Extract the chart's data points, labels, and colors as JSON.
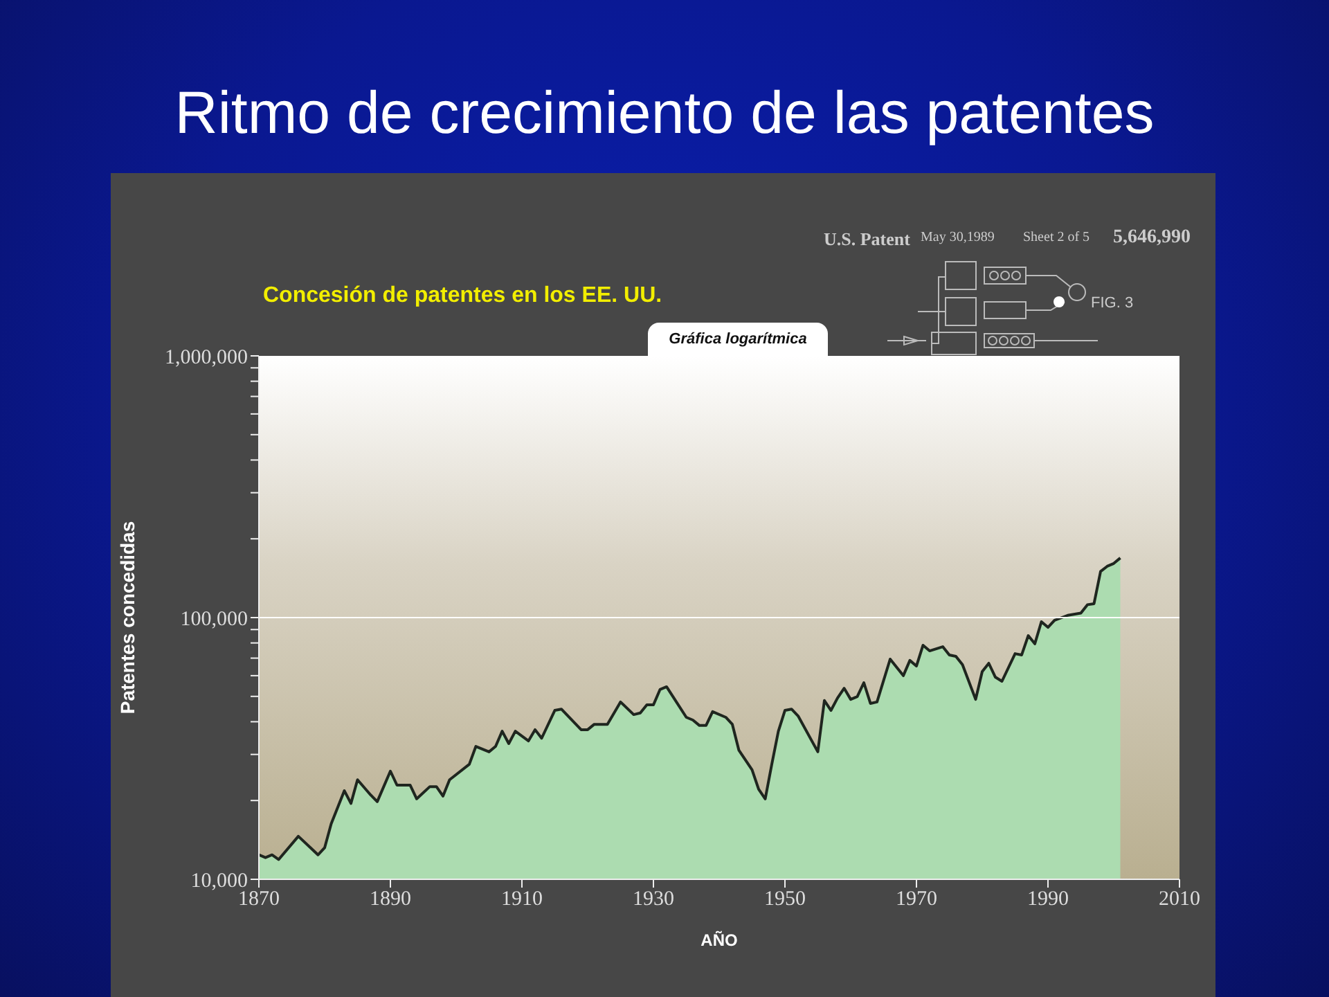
{
  "chart_data": {
    "type": "area",
    "title": "Ritmo de crecimiento de las patentes",
    "subtitle": "Concesión de patentes en los EE. UU.",
    "xlabel": "AÑO",
    "ylabel": "Patentes concedidas",
    "log": true,
    "annotations": [
      "Gráfica logarítmica",
      "U.S. Patent",
      "May 30,1989",
      "Sheet 2 of 5",
      "5,646,990",
      "FIG. 3"
    ],
    "x": [
      1870,
      1871,
      1872,
      1873,
      1876,
      1878,
      1879,
      1880,
      1881,
      1883,
      1884,
      1885,
      1887,
      1888,
      1890,
      1891,
      1893,
      1894,
      1896,
      1897,
      1898,
      1899,
      1902,
      1903,
      1905,
      1906,
      1907,
      1908,
      1909,
      1911,
      1912,
      1913,
      1915,
      1916,
      1919,
      1920,
      1921,
      1923,
      1925,
      1927,
      1928,
      1929,
      1930,
      1931,
      1932,
      1935,
      1936,
      1937,
      1938,
      1939,
      1941,
      1942,
      1943,
      1945,
      1946,
      1947,
      1948,
      1949,
      1950,
      1951,
      1952,
      1955,
      1956,
      1957,
      1958,
      1959,
      1960,
      1961,
      1962,
      1963,
      1964,
      1966,
      1968,
      1969,
      1970,
      1971,
      1972,
      1974,
      1975,
      1976,
      1977,
      1979,
      1980,
      1981,
      1982,
      1983,
      1985,
      1986,
      1987,
      1988,
      1989,
      1990,
      1991,
      1993,
      1995,
      1996,
      1997,
      1998,
      1999,
      2000,
      2001
    ],
    "series": [
      {
        "color": "#acdcb0",
        "values": [
          12400,
          12100,
          12400,
          11900,
          14600,
          13100,
          12400,
          13200,
          16300,
          21800,
          19500,
          24000,
          21000,
          19800,
          25900,
          22900,
          22900,
          20300,
          22600,
          22600,
          20800,
          24000,
          27500,
          32200,
          30700,
          32200,
          36800,
          33000,
          36800,
          33800,
          37300,
          34600,
          44200,
          44700,
          37300,
          37300,
          39100,
          39100,
          47600,
          42600,
          43200,
          46400,
          46400,
          53100,
          54400,
          41600,
          40600,
          38700,
          38700,
          43700,
          41600,
          39100,
          31100,
          26200,
          22100,
          20300,
          27500,
          36800,
          44200,
          44700,
          42100,
          30700,
          48200,
          44200,
          49300,
          53700,
          48700,
          49900,
          56400,
          47000,
          47600,
          69400,
          60000,
          68600,
          65300,
          78400,
          74600,
          77400,
          72000,
          71100,
          66100,
          48700,
          62200,
          66900,
          59200,
          57100,
          72800,
          72000,
          85300,
          79400,
          96400,
          91800,
          97600,
          102000,
          104000,
          112000,
          113000,
          150000,
          157000,
          161000,
          169000
        ]
      }
    ],
    "xlim": [
      1870,
      2010
    ],
    "xticks": [
      1870,
      1890,
      1910,
      1930,
      1950,
      1970,
      1990,
      2010
    ],
    "ylim": [
      10000,
      1000000
    ],
    "yticks": [
      {
        "value": 10000,
        "label": "10,000"
      },
      {
        "value": 20000,
        "label": null
      },
      {
        "value": 30000,
        "label": null
      },
      {
        "value": 40000,
        "label": null
      },
      {
        "value": 50000,
        "label": null
      },
      {
        "value": 60000,
        "label": null
      },
      {
        "value": 70000,
        "label": null
      },
      {
        "value": 80000,
        "label": null
      },
      {
        "value": 90000,
        "label": null
      },
      {
        "value": 100000,
        "label": "100,000"
      },
      {
        "value": 200000,
        "label": null
      },
      {
        "value": 300000,
        "label": null
      },
      {
        "value": 400000,
        "label": null
      },
      {
        "value": 500000,
        "label": null
      },
      {
        "value": 600000,
        "label": null
      },
      {
        "value": 700000,
        "label": null
      },
      {
        "value": 800000,
        "label": null
      },
      {
        "value": 900000,
        "label": null
      },
      {
        "value": 1000000,
        "label": "1,000,000"
      }
    ],
    "ref_lines": [
      {
        "axis": "y",
        "value": 100000,
        "color": "#ffffff"
      }
    ]
  }
}
